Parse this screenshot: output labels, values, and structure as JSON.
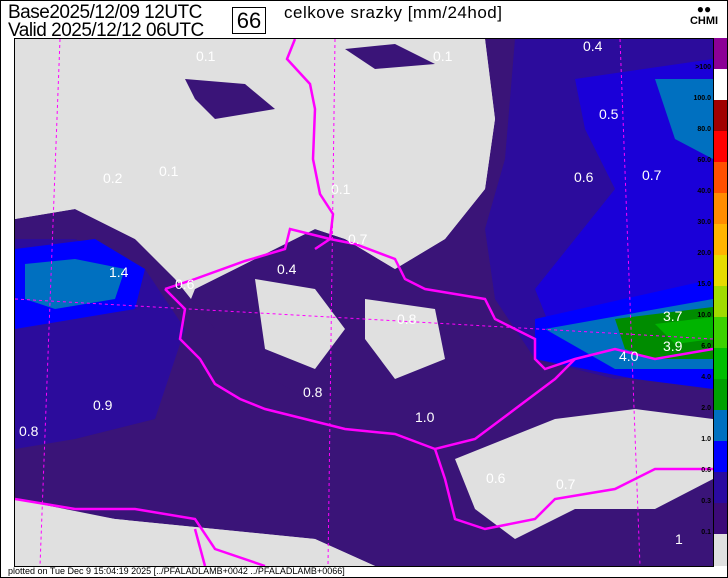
{
  "header": {
    "base_label": "Base",
    "base_time": "2025/12/09 12UTC",
    "valid_label": "Valid",
    "valid_time": "2025/12/12 06UTC",
    "forecast_hour": "66",
    "title": "celkove srazky [mm/24hod]",
    "logo_text": "CHMI"
  },
  "map": {
    "colors": {
      "background": "#e0e0e0",
      "v01": "#3a1478",
      "v03": "#2c0c9c",
      "v06": "#1a00d8",
      "v1": "#0000ff",
      "v2": "#0070c0",
      "v4": "#008c00",
      "v6": "#00b400",
      "border": "#ff00ff"
    },
    "values": [
      "0.1",
      "0.1",
      "0.4",
      "0.2",
      "0.1",
      "0.1",
      "0.5",
      "0.6",
      "0.7",
      "0.7",
      "1.4",
      "0.6",
      "0.4",
      "0.8",
      "3.7",
      "3.9",
      "4.0",
      "0.9",
      "0.8",
      "0.8",
      "1.0",
      "0.6",
      "0.7",
      "1"
    ]
  },
  "legend": {
    "labels": [
      ">100",
      "100.0",
      "80.0",
      "60.0",
      "40.0",
      "30.0",
      "20.0",
      "15.0",
      "10.0",
      "6.0",
      "4.0",
      "2.0",
      "1.0",
      "0.6",
      "0.3",
      "0.1"
    ],
    "colors": [
      "#8c0096",
      "#ffffff",
      "#a00000",
      "#ff0000",
      "#ff5000",
      "#ff8c00",
      "#ffb400",
      "#e6dc00",
      "#a0dc00",
      "#3cd200",
      "#00be00",
      "#00a000",
      "#0070c0",
      "#0000ff",
      "#2a0aa0",
      "#3c0a78",
      "#e0e0e0"
    ]
  },
  "footer": {
    "text": "plotted on Tue Dec  9 15:04:19 2025 [../PFALADLAMB+0042 ../PFALADLAMB+0066]"
  }
}
